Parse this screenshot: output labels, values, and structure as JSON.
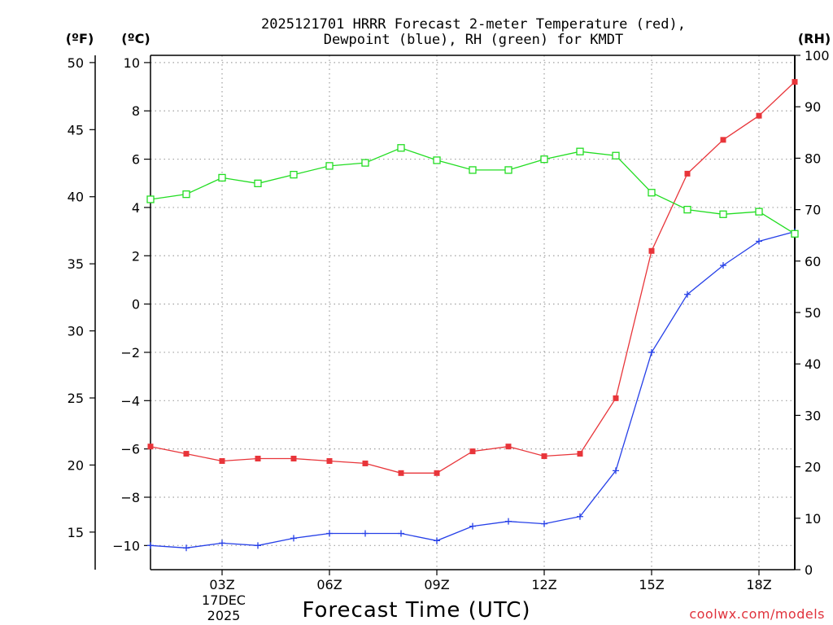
{
  "chart_data": {
    "type": "line",
    "title_line1": "2025121701 HRRR Forecast 2-meter Temperature (red),",
    "title_line2": "Dewpoint (blue), RH (green) for KMDT",
    "xlabel": "Forecast Time (UTC)",
    "credit": "coolwx.com/models",
    "units": {
      "fahrenheit": "(ºF)",
      "celsius": "(ºC)",
      "rh": "(RH)"
    },
    "x_hours": [
      1,
      2,
      3,
      4,
      5,
      6,
      7,
      8,
      9,
      10,
      11,
      12,
      13,
      14,
      15,
      16,
      17,
      18,
      19
    ],
    "xlim": [
      1,
      19
    ],
    "x_tick_hours": [
      3,
      6,
      9,
      12,
      15,
      18
    ],
    "x_tick_labels": [
      "03Z",
      "06Z",
      "09Z",
      "12Z",
      "15Z",
      "18Z"
    ],
    "date_label_line1": "17DEC",
    "date_label_line2": "2025",
    "celsius_axis": {
      "min": -11,
      "max": 10.3,
      "ticks": [
        10,
        8,
        6,
        4,
        2,
        0,
        -2,
        -4,
        -6,
        -8,
        -10
      ]
    },
    "fahrenheit_axis": {
      "ticks": [
        50,
        45,
        40,
        35,
        30,
        25,
        20,
        15
      ]
    },
    "rh_axis": {
      "min": 0,
      "max": 100,
      "ticks": [
        100,
        90,
        80,
        70,
        60,
        50,
        40,
        30,
        20,
        10,
        0
      ]
    },
    "series": [
      {
        "name": "Temperature",
        "axis": "celsius",
        "color": "#e8353a",
        "marker": "filled-square",
        "values": [
          -5.9,
          -6.2,
          -6.5,
          -6.4,
          -6.4,
          -6.5,
          -6.6,
          -7.0,
          -7.0,
          -6.1,
          -5.9,
          -6.3,
          -6.2,
          -3.9,
          2.2,
          5.4,
          6.8,
          7.8,
          9.2
        ]
      },
      {
        "name": "Dewpoint",
        "axis": "celsius",
        "color": "#2640e8",
        "marker": "plus",
        "values": [
          -10.0,
          -10.1,
          -9.9,
          -10.0,
          -9.7,
          -9.5,
          -9.5,
          -9.5,
          -9.8,
          -9.2,
          -9.0,
          -9.1,
          -8.8,
          -6.9,
          -2.0,
          0.4,
          1.6,
          2.6,
          3.0
        ]
      },
      {
        "name": "RH",
        "axis": "rh",
        "color": "#22dd22",
        "marker": "open-square",
        "values": [
          72.0,
          73.0,
          76.2,
          75.1,
          76.8,
          78.5,
          79.1,
          82.0,
          79.6,
          77.7,
          77.7,
          79.8,
          81.3,
          80.5,
          73.3,
          70.0,
          69.1,
          69.6,
          65.3
        ]
      }
    ]
  }
}
